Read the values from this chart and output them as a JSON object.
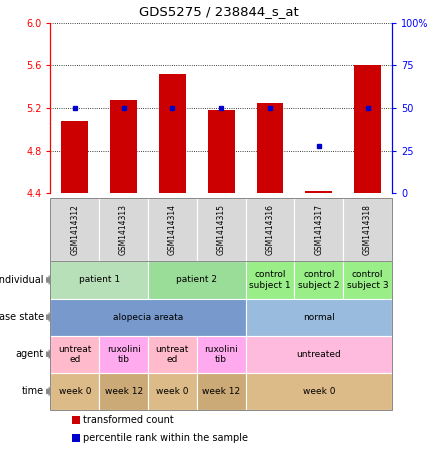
{
  "title": "GDS5275 / 238844_s_at",
  "samples": [
    "GSM1414312",
    "GSM1414313",
    "GSM1414314",
    "GSM1414315",
    "GSM1414316",
    "GSM1414317",
    "GSM1414318"
  ],
  "transformed_count": [
    5.08,
    5.28,
    5.52,
    5.18,
    5.25,
    4.42,
    5.6
  ],
  "percentile_rank": [
    50,
    50,
    50,
    50,
    50,
    28,
    50
  ],
  "ylim_left": [
    4.4,
    6.0
  ],
  "ylim_right": [
    0,
    100
  ],
  "y_ticks_left": [
    4.4,
    4.8,
    5.2,
    5.6,
    6.0
  ],
  "y_ticks_right": [
    0,
    25,
    50,
    75,
    100
  ],
  "bar_color": "#cc0000",
  "dot_color": "#0000cc",
  "bar_bottom": 4.4,
  "sample_box_color": "#d8d8d8",
  "rows": [
    {
      "label": "individual",
      "cells": [
        {
          "text": "patient 1",
          "span": 2,
          "color": "#b8e0b8"
        },
        {
          "text": "patient 2",
          "span": 2,
          "color": "#99dd99"
        },
        {
          "text": "control\nsubject 1",
          "span": 1,
          "color": "#99ee88"
        },
        {
          "text": "control\nsubject 2",
          "span": 1,
          "color": "#99ee88"
        },
        {
          "text": "control\nsubject 3",
          "span": 1,
          "color": "#99ee88"
        }
      ]
    },
    {
      "label": "disease state",
      "cells": [
        {
          "text": "alopecia areata",
          "span": 4,
          "color": "#7799cc"
        },
        {
          "text": "normal",
          "span": 3,
          "color": "#99bbdd"
        }
      ]
    },
    {
      "label": "agent",
      "cells": [
        {
          "text": "untreat\ned",
          "span": 1,
          "color": "#ffbbcc"
        },
        {
          "text": "ruxolini\ntib",
          "span": 1,
          "color": "#ffaaee"
        },
        {
          "text": "untreat\ned",
          "span": 1,
          "color": "#ffbbcc"
        },
        {
          "text": "ruxolini\ntib",
          "span": 1,
          "color": "#ffaaee"
        },
        {
          "text": "untreated",
          "span": 3,
          "color": "#ffbbdd"
        }
      ]
    },
    {
      "label": "time",
      "cells": [
        {
          "text": "week 0",
          "span": 1,
          "color": "#ddbb88"
        },
        {
          "text": "week 12",
          "span": 1,
          "color": "#ccaa77"
        },
        {
          "text": "week 0",
          "span": 1,
          "color": "#ddbb88"
        },
        {
          "text": "week 12",
          "span": 1,
          "color": "#ccaa77"
        },
        {
          "text": "week 0",
          "span": 3,
          "color": "#ddbb88"
        }
      ]
    }
  ],
  "legend": [
    {
      "color": "#cc0000",
      "text": "transformed count"
    },
    {
      "color": "#0000cc",
      "text": "percentile rank within the sample"
    }
  ]
}
